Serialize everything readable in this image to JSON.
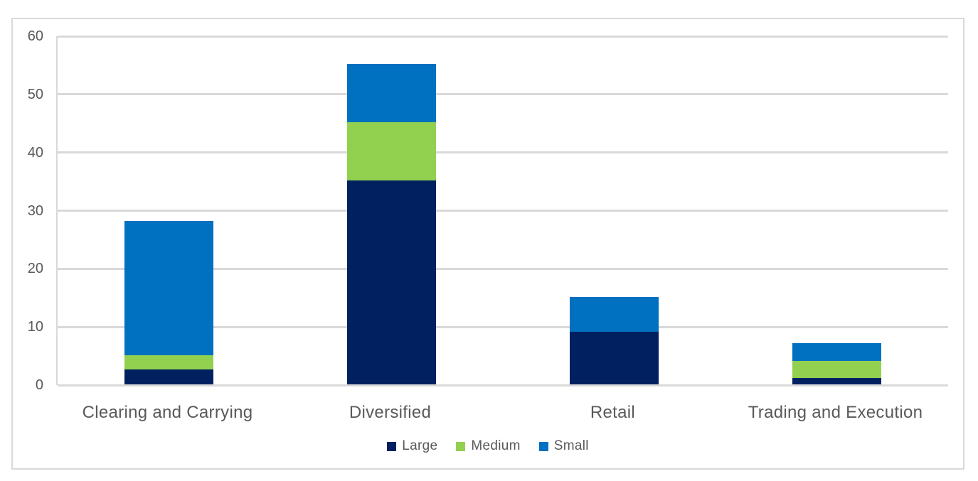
{
  "figure": {
    "background_color": "#ffffff",
    "frame_border_color": "#d9d9d9"
  },
  "chart_data": {
    "type": "bar",
    "stacked": true,
    "title": "",
    "xlabel": "",
    "ylabel": "",
    "categories": [
      "Clearing and Carrying",
      "Diversified",
      "Retail",
      "Trading and Execution"
    ],
    "series": [
      {
        "name": "Large",
        "color": "#002060",
        "values": [
          2.5,
          35,
          9,
          1
        ]
      },
      {
        "name": "Medium",
        "color": "#92d050",
        "values": [
          2.5,
          10,
          0,
          3
        ]
      },
      {
        "name": "Small",
        "color": "#0070c0",
        "values": [
          23,
          10,
          6,
          3
        ]
      }
    ],
    "totals": [
      28,
      55,
      15,
      7
    ],
    "ylim": [
      0,
      60
    ],
    "yticks": [
      0,
      10,
      20,
      30,
      40,
      50,
      60
    ],
    "grid": "horizontal",
    "gridline_color": "#d9d9d9",
    "axis_line_color": "#d9d9d9",
    "text_color": "#595959",
    "legend_position": "bottom-center",
    "legend_labels": [
      "Large",
      "Medium",
      "Small"
    ]
  }
}
